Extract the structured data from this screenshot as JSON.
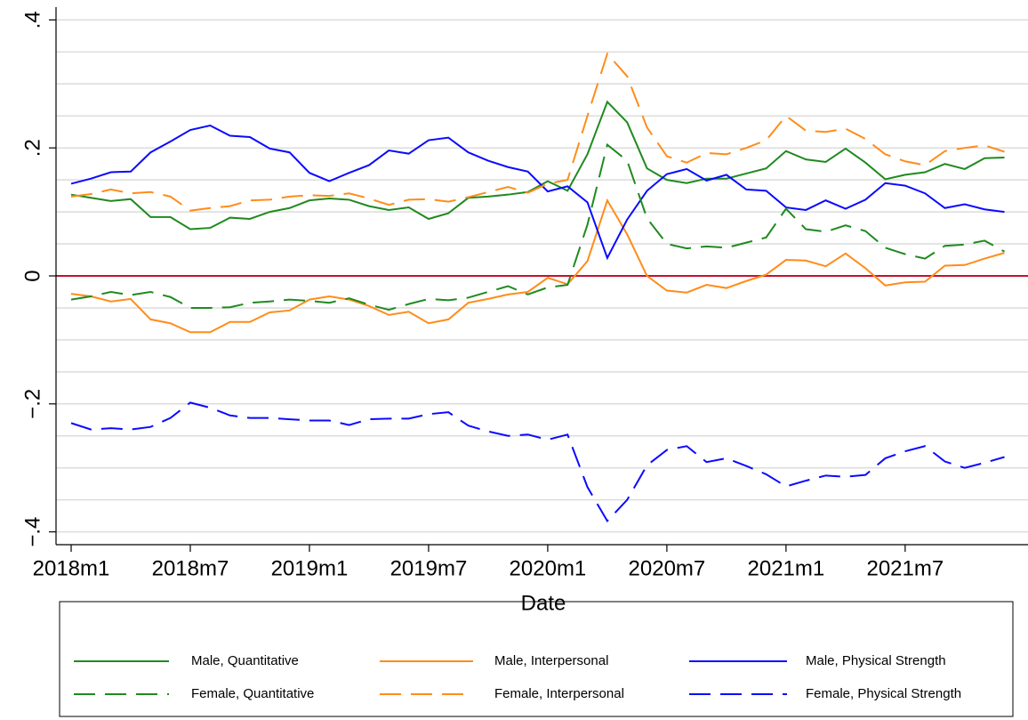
{
  "chart_data": {
    "type": "line",
    "x_label": "Date",
    "categories": [
      "2018m1",
      null,
      null,
      null,
      null,
      null,
      "2018m7",
      null,
      null,
      null,
      null,
      null,
      "2019m1",
      null,
      null,
      null,
      null,
      null,
      "2019m7",
      null,
      null,
      null,
      null,
      null,
      "2020m1",
      null,
      null,
      null,
      null,
      null,
      "2020m7",
      null,
      null,
      null,
      null,
      null,
      "2021m1",
      null,
      null,
      null,
      null,
      null,
      "2021m7",
      null,
      null,
      null,
      null,
      null
    ],
    "ylim": [
      -0.42,
      0.42
    ],
    "yticks": [
      {
        "value": -0.4,
        "label": "−.4"
      },
      {
        "value": -0.2,
        "label": "−.2"
      },
      0,
      {
        "value": 0.2,
        "label": ".2"
      },
      {
        "value": 0.4,
        "label": ".4"
      }
    ],
    "ygrid": [
      -0.4,
      -0.35,
      -0.3,
      -0.25,
      -0.2,
      -0.15,
      -0.1,
      -0.05,
      0,
      0.05,
      0.1,
      0.15,
      0.2,
      0.25,
      0.3,
      0.35,
      0.4
    ],
    "reference_line": {
      "value": 0,
      "color": "#c8102e"
    },
    "series": [
      {
        "name": "Male, Quantitative",
        "color": "#1f8a1f",
        "dash": false,
        "values": [
          0.127,
          0.122,
          0.117,
          0.12,
          0.092,
          0.092,
          0.073,
          0.075,
          0.091,
          0.089,
          0.1,
          0.106,
          0.118,
          0.121,
          0.119,
          0.109,
          0.103,
          0.107,
          0.089,
          0.098,
          0.122,
          0.124,
          0.127,
          0.131,
          0.148,
          0.133,
          0.19,
          0.272,
          0.24,
          0.168,
          0.15,
          0.145,
          0.152,
          0.152,
          0.16,
          0.168,
          0.195,
          0.182,
          0.178,
          0.199,
          0.177,
          0.151,
          0.158,
          0.162,
          0.175,
          0.167,
          0.184,
          0.185
        ]
      },
      {
        "name": "Male, Interpersonal",
        "color": "#ff8c1a",
        "dash": false,
        "values": [
          -0.028,
          -0.032,
          -0.04,
          -0.036,
          -0.068,
          -0.074,
          -0.088,
          -0.088,
          -0.072,
          -0.072,
          -0.057,
          -0.054,
          -0.037,
          -0.032,
          -0.037,
          -0.047,
          -0.061,
          -0.056,
          -0.074,
          -0.068,
          -0.042,
          -0.036,
          -0.029,
          -0.025,
          -0.003,
          -0.013,
          0.023,
          0.118,
          0.065,
          0.0,
          -0.023,
          -0.026,
          -0.014,
          -0.019,
          -0.008,
          0.002,
          0.025,
          0.024,
          0.015,
          0.035,
          0.012,
          -0.015,
          -0.01,
          -0.009,
          0.016,
          0.017,
          0.027,
          0.036
        ]
      },
      {
        "name": "Male, Physical Strength",
        "color": "#0a0aff",
        "dash": false,
        "values": [
          0.144,
          0.152,
          0.162,
          0.163,
          0.193,
          0.21,
          0.228,
          0.235,
          0.219,
          0.217,
          0.199,
          0.193,
          0.161,
          0.148,
          0.161,
          0.173,
          0.196,
          0.191,
          0.212,
          0.216,
          0.193,
          0.18,
          0.17,
          0.163,
          0.132,
          0.14,
          0.115,
          0.028,
          0.088,
          0.133,
          0.159,
          0.167,
          0.149,
          0.158,
          0.135,
          0.133,
          0.107,
          0.103,
          0.118,
          0.105,
          0.119,
          0.145,
          0.141,
          0.129,
          0.106,
          0.112,
          0.104,
          0.1
        ]
      },
      {
        "name": "Female, Quantitative",
        "color": "#1f8a1f",
        "dash": true,
        "values": [
          -0.037,
          -0.032,
          -0.025,
          -0.03,
          -0.025,
          -0.033,
          -0.05,
          -0.05,
          -0.049,
          -0.042,
          -0.04,
          -0.037,
          -0.039,
          -0.042,
          -0.035,
          -0.045,
          -0.053,
          -0.044,
          -0.036,
          -0.038,
          -0.034,
          -0.025,
          -0.016,
          -0.029,
          -0.018,
          -0.014,
          0.08,
          0.205,
          0.18,
          0.09,
          0.05,
          0.043,
          0.046,
          0.044,
          0.052,
          0.06,
          0.105,
          0.073,
          0.069,
          0.079,
          0.07,
          0.044,
          0.034,
          0.027,
          0.047,
          0.049,
          0.055,
          0.038
        ]
      },
      {
        "name": "Female, Interpersonal",
        "color": "#ff8c1a",
        "dash": true,
        "values": [
          0.124,
          0.128,
          0.135,
          0.129,
          0.131,
          0.124,
          0.102,
          0.106,
          0.109,
          0.118,
          0.119,
          0.124,
          0.126,
          0.125,
          0.129,
          0.121,
          0.111,
          0.119,
          0.12,
          0.116,
          0.123,
          0.131,
          0.139,
          0.13,
          0.144,
          0.15,
          0.25,
          0.347,
          0.312,
          0.232,
          0.187,
          0.177,
          0.192,
          0.19,
          0.2,
          0.212,
          0.25,
          0.227,
          0.225,
          0.23,
          0.214,
          0.19,
          0.179,
          0.173,
          0.195,
          0.2,
          0.204,
          0.194
        ]
      },
      {
        "name": "Female, Physical Strength",
        "color": "#0a0aff",
        "dash": true,
        "values": [
          -0.23,
          -0.24,
          -0.238,
          -0.24,
          -0.236,
          -0.222,
          -0.198,
          -0.206,
          -0.218,
          -0.222,
          -0.222,
          -0.224,
          -0.226,
          -0.226,
          -0.233,
          -0.224,
          -0.223,
          -0.223,
          -0.216,
          -0.213,
          -0.234,
          -0.243,
          -0.25,
          -0.248,
          -0.256,
          -0.248,
          -0.33,
          -0.383,
          -0.35,
          -0.296,
          -0.272,
          -0.266,
          -0.291,
          -0.285,
          -0.297,
          -0.31,
          -0.329,
          -0.32,
          -0.312,
          -0.314,
          -0.311,
          -0.285,
          -0.274,
          -0.266,
          -0.29,
          -0.3,
          -0.292,
          -0.283
        ]
      }
    ]
  }
}
